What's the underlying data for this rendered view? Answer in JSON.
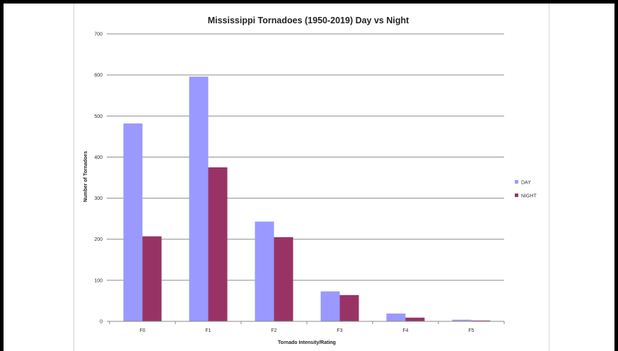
{
  "chart_data": {
    "type": "bar",
    "title": "Mississippi Tornadoes (1950-2019) Day vs Night",
    "xlabel": "Tornado Intensity/Rating",
    "ylabel": "Number of Tornadoes",
    "categories": [
      "F0",
      "F1",
      "F2",
      "F3",
      "F4",
      "F5"
    ],
    "series": [
      {
        "name": "DAY",
        "color": "#9999ff",
        "values": [
          482,
          596,
          243,
          73,
          19,
          4
        ]
      },
      {
        "name": "NIGHT",
        "color": "#993366",
        "values": [
          207,
          375,
          205,
          64,
          9,
          2
        ]
      }
    ],
    "ylim": [
      0,
      700
    ],
    "yticks": [
      0,
      100,
      200,
      300,
      400,
      500,
      600,
      700
    ],
    "grid": true,
    "legend": "right"
  }
}
